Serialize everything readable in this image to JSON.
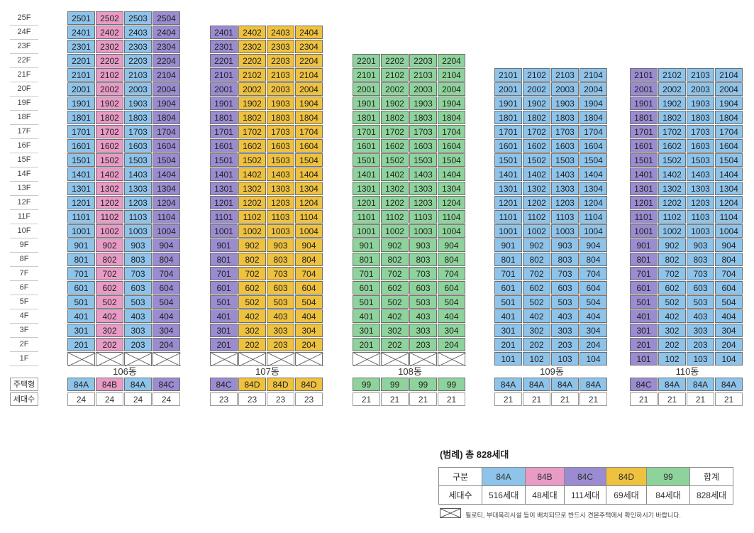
{
  "floors": [
    "25F",
    "24F",
    "23F",
    "22F",
    "21F",
    "20F",
    "19F",
    "18F",
    "17F",
    "16F",
    "15F",
    "14F",
    "13F",
    "12F",
    "11F",
    "10F",
    "9F",
    "8F",
    "7F",
    "6F",
    "5F",
    "4F",
    "3F",
    "2F",
    "1F"
  ],
  "colors": {
    "84A": "#8ec3ea",
    "84B": "#e79bc5",
    "84C": "#9b8bd0",
    "84D": "#eec13f",
    "99": "#8ed39b",
    "blank": "#ffffff"
  },
  "row_labels": {
    "type": "주택형",
    "count": "세대수"
  },
  "buildings": [
    {
      "name": "106동",
      "top_floor": 25,
      "first_floor_start": 2,
      "lines": [
        {
          "type": "84A",
          "count": "24",
          "units": [
            "2501",
            "2401",
            "2301",
            "2201",
            "2101",
            "2001",
            "1901",
            "1801",
            "1701",
            "1601",
            "1501",
            "1401",
            "1301",
            "1201",
            "1101",
            "1001",
            "901",
            "801",
            "701",
            "601",
            "501",
            "401",
            "301",
            "201"
          ]
        },
        {
          "type": "84B",
          "count": "24",
          "units": [
            "2502",
            "2402",
            "2302",
            "2202",
            "2102",
            "2002",
            "1902",
            "1802",
            "1702",
            "1602",
            "1502",
            "1402",
            "1302",
            "1202",
            "1102",
            "1002",
            "902",
            "802",
            "702",
            "602",
            "502",
            "402",
            "302",
            "202"
          ]
        },
        {
          "type": "84A",
          "count": "24",
          "units": [
            "2503",
            "2403",
            "2303",
            "2203",
            "2103",
            "2003",
            "1903",
            "1803",
            "1703",
            "1603",
            "1503",
            "1403",
            "1303",
            "1203",
            "1103",
            "1003",
            "903",
            "803",
            "703",
            "603",
            "503",
            "403",
            "303",
            "203"
          ]
        },
        {
          "type": "84C",
          "count": "24",
          "units": [
            "2504",
            "2404",
            "2304",
            "2204",
            "2104",
            "2004",
            "1904",
            "1804",
            "1704",
            "1604",
            "1504",
            "1404",
            "1304",
            "1204",
            "1104",
            "1004",
            "904",
            "804",
            "704",
            "604",
            "504",
            "404",
            "304",
            "204"
          ]
        }
      ]
    },
    {
      "name": "107동",
      "top_floor": 24,
      "first_floor_start": 2,
      "lines": [
        {
          "type": "84C",
          "count": "23",
          "units": [
            "2401",
            "2301",
            "2201",
            "2101",
            "2001",
            "1901",
            "1801",
            "1701",
            "1601",
            "1501",
            "1401",
            "1301",
            "1201",
            "1101",
            "1001",
            "901",
            "801",
            "701",
            "601",
            "501",
            "401",
            "301",
            "201"
          ]
        },
        {
          "type": "84D",
          "count": "23",
          "units": [
            "2402",
            "2302",
            "2202",
            "2102",
            "2002",
            "1902",
            "1802",
            "1702",
            "1602",
            "1502",
            "1402",
            "1302",
            "1202",
            "1102",
            "1002",
            "902",
            "802",
            "702",
            "602",
            "502",
            "402",
            "302",
            "202"
          ]
        },
        {
          "type": "84D",
          "count": "23",
          "units": [
            "2403",
            "2303",
            "2203",
            "2103",
            "2003",
            "1903",
            "1803",
            "1703",
            "1603",
            "1503",
            "1403",
            "1303",
            "1203",
            "1103",
            "1003",
            "903",
            "803",
            "703",
            "603",
            "503",
            "403",
            "303",
            "203"
          ]
        },
        {
          "type": "84D",
          "count": "23",
          "units": [
            "2404",
            "2304",
            "2204",
            "2104",
            "2004",
            "1904",
            "1804",
            "1704",
            "1604",
            "1504",
            "1404",
            "1304",
            "1204",
            "1104",
            "1004",
            "904",
            "804",
            "704",
            "604",
            "504",
            "404",
            "304",
            "204"
          ]
        }
      ]
    },
    {
      "name": "108동",
      "top_floor": 22,
      "first_floor_start": 2,
      "lines": [
        {
          "type": "99",
          "count": "21",
          "units": [
            "2201",
            "2101",
            "2001",
            "1901",
            "1801",
            "1701",
            "1601",
            "1501",
            "1401",
            "1301",
            "1201",
            "1101",
            "1001",
            "901",
            "801",
            "701",
            "601",
            "501",
            "401",
            "301",
            "201"
          ]
        },
        {
          "type": "99",
          "count": "21",
          "units": [
            "2202",
            "2102",
            "2002",
            "1902",
            "1802",
            "1702",
            "1602",
            "1502",
            "1402",
            "1302",
            "1202",
            "1102",
            "1002",
            "902",
            "802",
            "702",
            "602",
            "502",
            "402",
            "302",
            "202"
          ]
        },
        {
          "type": "99",
          "count": "21",
          "units": [
            "2203",
            "2103",
            "2003",
            "1903",
            "1803",
            "1703",
            "1603",
            "1503",
            "1403",
            "1303",
            "1203",
            "1103",
            "1003",
            "903",
            "803",
            "703",
            "603",
            "503",
            "403",
            "303",
            "203"
          ]
        },
        {
          "type": "99",
          "count": "21",
          "units": [
            "2204",
            "2104",
            "2004",
            "1904",
            "1804",
            "1704",
            "1604",
            "1504",
            "1404",
            "1304",
            "1204",
            "1104",
            "1004",
            "904",
            "804",
            "704",
            "604",
            "504",
            "404",
            "304",
            "204"
          ]
        }
      ]
    },
    {
      "name": "109동",
      "top_floor": 21,
      "first_floor_start": 1,
      "lines": [
        {
          "type": "84A",
          "count": "21",
          "units": [
            "2101",
            "2001",
            "1901",
            "1801",
            "1701",
            "1601",
            "1501",
            "1401",
            "1301",
            "1201",
            "1101",
            "1001",
            "901",
            "801",
            "701",
            "601",
            "501",
            "401",
            "301",
            "201",
            "101"
          ]
        },
        {
          "type": "84A",
          "count": "21",
          "units": [
            "2102",
            "2002",
            "1902",
            "1802",
            "1702",
            "1602",
            "1502",
            "1402",
            "1302",
            "1202",
            "1102",
            "1002",
            "902",
            "802",
            "702",
            "602",
            "502",
            "402",
            "302",
            "202",
            "102"
          ]
        },
        {
          "type": "84A",
          "count": "21",
          "units": [
            "2103",
            "2003",
            "1903",
            "1803",
            "1703",
            "1603",
            "1503",
            "1403",
            "1303",
            "1203",
            "1103",
            "1003",
            "903",
            "803",
            "703",
            "603",
            "503",
            "403",
            "303",
            "203",
            "103"
          ]
        },
        {
          "type": "84A",
          "count": "21",
          "units": [
            "2104",
            "2004",
            "1904",
            "1804",
            "1704",
            "1604",
            "1504",
            "1404",
            "1304",
            "1204",
            "1104",
            "1004",
            "904",
            "804",
            "704",
            "604",
            "504",
            "404",
            "304",
            "204",
            "104"
          ]
        }
      ]
    },
    {
      "name": "110동",
      "top_floor": 21,
      "first_floor_start": 1,
      "lines": [
        {
          "type": "84C",
          "count": "21",
          "units": [
            "2101",
            "2001",
            "1901",
            "1801",
            "1701",
            "1601",
            "1501",
            "1401",
            "1301",
            "1201",
            "1101",
            "1001",
            "901",
            "801",
            "701",
            "601",
            "501",
            "401",
            "301",
            "201",
            "101"
          ]
        },
        {
          "type": "84A",
          "count": "21",
          "units": [
            "2102",
            "2002",
            "1902",
            "1802",
            "1702",
            "1602",
            "1502",
            "1402",
            "1302",
            "1202",
            "1102",
            "1002",
            "902",
            "802",
            "702",
            "602",
            "502",
            "402",
            "302",
            "202",
            "102"
          ]
        },
        {
          "type": "84A",
          "count": "21",
          "units": [
            "2103",
            "2003",
            "1903",
            "1803",
            "1703",
            "1603",
            "1503",
            "1403",
            "1303",
            "1203",
            "1103",
            "1003",
            "903",
            "803",
            "703",
            "603",
            "503",
            "403",
            "303",
            "203",
            "103"
          ]
        },
        {
          "type": "84A",
          "count": "21",
          "units": [
            "2104",
            "2004",
            "1904",
            "1804",
            "1704",
            "1604",
            "1504",
            "1404",
            "1304",
            "1204",
            "1104",
            "1004",
            "904",
            "804",
            "704",
            "604",
            "504",
            "404",
            "304",
            "204",
            "104"
          ]
        }
      ]
    }
  ],
  "legend": {
    "title": "(범례) 총 828세대",
    "header_label": "구분",
    "count_label": "세대수",
    "items": [
      {
        "type": "84A",
        "count": "516세대"
      },
      {
        "type": "84B",
        "count": "48세대"
      },
      {
        "type": "84C",
        "count": "111세대"
      },
      {
        "type": "84D",
        "count": "69세대"
      },
      {
        "type": "99",
        "count": "84세대"
      }
    ],
    "total_label": "합계",
    "total_count": "828세대",
    "note": "필로티, 부대복리시설 등이 배치되므로 반드시 견본주택에서 확인하시기 바랍니다."
  }
}
